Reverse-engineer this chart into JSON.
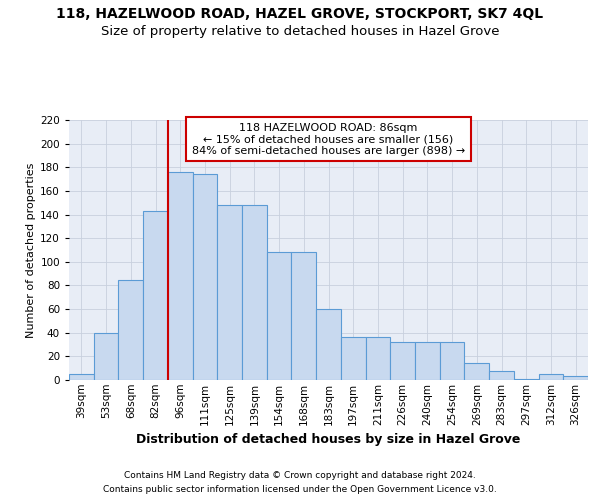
{
  "title1": "118, HAZELWOOD ROAD, HAZEL GROVE, STOCKPORT, SK7 4QL",
  "title2": "Size of property relative to detached houses in Hazel Grove",
  "xlabel": "Distribution of detached houses by size in Hazel Grove",
  "ylabel": "Number of detached properties",
  "categories": [
    "39sqm",
    "53sqm",
    "68sqm",
    "82sqm",
    "96sqm",
    "111sqm",
    "125sqm",
    "139sqm",
    "154sqm",
    "168sqm",
    "183sqm",
    "197sqm",
    "211sqm",
    "226sqm",
    "240sqm",
    "254sqm",
    "269sqm",
    "283sqm",
    "297sqm",
    "312sqm",
    "326sqm"
  ],
  "values": [
    5,
    40,
    85,
    143,
    176,
    174,
    148,
    148,
    108,
    108,
    60,
    36,
    36,
    32,
    32,
    32,
    14,
    8,
    1,
    5,
    3
  ],
  "bar_color": "#c8d9ef",
  "bar_edge_color": "#5b9bd5",
  "grid_color": "#c8d0de",
  "vline_color": "#cc0000",
  "vline_x": 3.5,
  "annotation_line1": "118 HAZELWOOD ROAD: 86sqm",
  "annotation_line2": "← 15% of detached houses are smaller (156)",
  "annotation_line3": "84% of semi-detached houses are larger (898) →",
  "annotation_box_facecolor": "#ffffff",
  "annotation_box_edgecolor": "#cc0000",
  "ylim": [
    0,
    220
  ],
  "yticks": [
    0,
    20,
    40,
    60,
    80,
    100,
    120,
    140,
    160,
    180,
    200,
    220
  ],
  "footer1": "Contains HM Land Registry data © Crown copyright and database right 2024.",
  "footer2": "Contains public sector information licensed under the Open Government Licence v3.0.",
  "bg_color": "#e8edf6",
  "title1_fontsize": 10,
  "title2_fontsize": 9.5,
  "ylabel_fontsize": 8,
  "xlabel_fontsize": 9,
  "tick_fontsize": 7.5,
  "ann_fontsize": 8,
  "footer_fontsize": 6.5
}
